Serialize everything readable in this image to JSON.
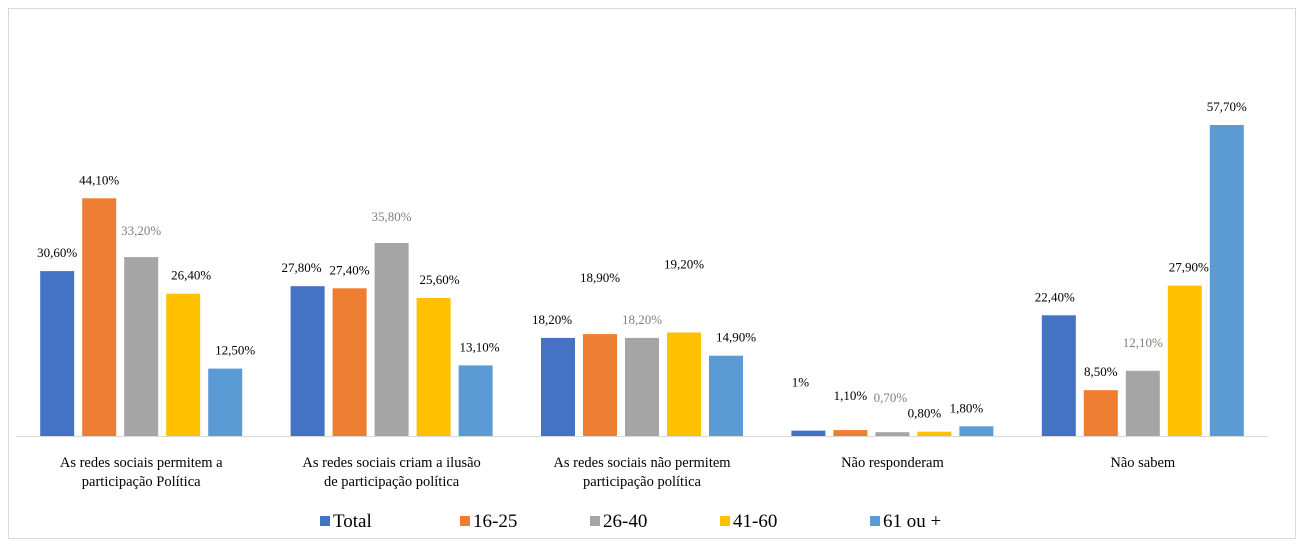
{
  "chart_data": {
    "type": "bar",
    "categories": [
      [
        "As redes sociais permitem a",
        "participação Política"
      ],
      [
        "As redes sociais criam a ilusão",
        "de participação política"
      ],
      [
        "As redes sociais não permitem",
        "participação política"
      ],
      [
        "Não responderam"
      ],
      [
        "Não sabem"
      ]
    ],
    "series": [
      {
        "name": "Total",
        "color": "#4472c4",
        "values": [
          30.6,
          27.8,
          18.2,
          1.0,
          22.4
        ],
        "labels": [
          "30,60%",
          "27,80%",
          "18,20%",
          "1%",
          "22,40%"
        ]
      },
      {
        "name": "16-25",
        "color": "#ed7d31",
        "values": [
          44.1,
          27.4,
          18.9,
          1.1,
          8.5
        ],
        "labels": [
          "44,10%",
          "27,40%",
          "18,90%",
          "1,10%",
          "8,50%"
        ]
      },
      {
        "name": "26-40",
        "color": "#a5a5a5",
        "values": [
          33.2,
          35.8,
          18.2,
          0.7,
          12.1
        ],
        "labels": [
          "33,20%",
          "35,80%",
          "18,20%",
          "0,70%",
          "12,10%"
        ]
      },
      {
        "name": "41-60",
        "color": "#ffc000",
        "values": [
          26.4,
          25.6,
          19.2,
          0.8,
          27.9
        ],
        "labels": [
          "26,40%",
          "25,60%",
          "19,20%",
          "0,80%",
          "27,90%"
        ]
      },
      {
        "name": "61 ou +",
        "color": "#5b9bd5",
        "values": [
          12.5,
          13.1,
          14.9,
          1.8,
          57.7
        ],
        "labels": [
          "12,50%",
          "13,10%",
          "14,90%",
          "1,80%",
          "57,70%"
        ]
      }
    ],
    "ylim": [
      0,
      60
    ],
    "grid": false,
    "legend_position": "bottom"
  }
}
